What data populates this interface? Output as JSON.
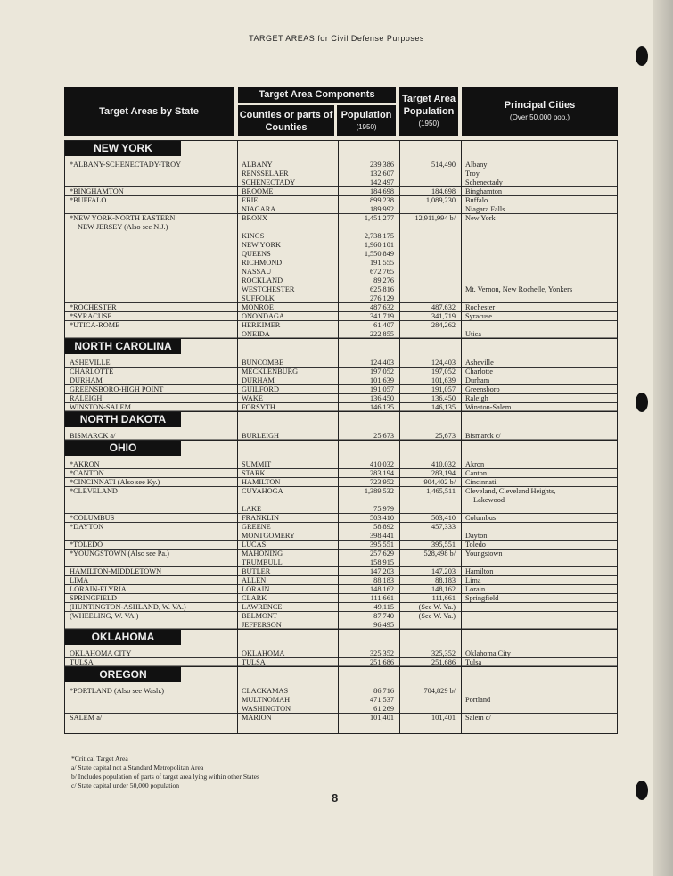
{
  "title": "TARGET AREAS for Civil Defense Purposes",
  "header": {
    "areas": "Target Areas by State",
    "components": "Target Area Components",
    "counties": "Counties or parts of Counties",
    "population": "Population",
    "population_year": "(1950)",
    "target_pop": "Target Area Population",
    "target_year": "(1950)",
    "cities": "Principal Cities",
    "cities_note": "(Over 50,000 pop.)"
  },
  "sections": [
    {
      "state": "NEW YORK",
      "groups": [
        [
          [
            "*ALBANY-SCHENECTADY-TROY",
            "ALBANY",
            "239,386",
            "514,490",
            "Albany"
          ],
          [
            "",
            "RENSSELAER",
            "132,607",
            "",
            "Troy"
          ],
          [
            "",
            "SCHENECTADY",
            "142,497",
            "",
            "Schenectady"
          ]
        ],
        [
          [
            "*BINGHAMTON",
            "BROOME",
            "184,698",
            "184,698",
            "Binghamton"
          ]
        ],
        [
          [
            "*BUFFALO",
            "ERIE",
            "899,238",
            "1,089,230",
            "Buffalo"
          ],
          [
            "",
            "NIAGARA",
            "189,992",
            "",
            "Niagara Falls"
          ]
        ],
        [
          [
            "*NEW YORK-NORTH EASTERN",
            "BRONX",
            "1,451,277",
            "12,911,994 b/",
            "New York"
          ],
          [
            "   NEW JERSEY (Also see N.J.)",
            "",
            "",
            "",
            ""
          ],
          [
            "",
            "KINGS",
            "2,738,175",
            "",
            ""
          ],
          [
            "",
            "NEW YORK",
            "1,960,101",
            "",
            ""
          ],
          [
            "",
            "QUEENS",
            "1,550,849",
            "",
            ""
          ],
          [
            "",
            "RICHMOND",
            "191,555",
            "",
            ""
          ],
          [
            "",
            "NASSAU",
            "672,765",
            "",
            ""
          ],
          [
            "",
            "ROCKLAND",
            "89,276",
            "",
            ""
          ],
          [
            "",
            "WESTCHESTER",
            "625,816",
            "",
            "Mt. Vernon, New Rochelle, Yonkers"
          ],
          [
            "",
            "SUFFOLK",
            "276,129",
            "",
            ""
          ]
        ],
        [
          [
            "*ROCHESTER",
            "MONROE",
            "487,632",
            "487,632",
            "Rochester"
          ]
        ],
        [
          [
            "*SYRACUSE",
            "ONONDAGA",
            "341,719",
            "341,719",
            "Syracuse"
          ]
        ],
        [
          [
            "*UTICA-ROME",
            "HERKIMER",
            "61,407",
            "284,262",
            ""
          ],
          [
            "",
            "ONEIDA",
            "222,855",
            "",
            "Utica"
          ]
        ]
      ]
    },
    {
      "state": "NORTH CAROLINA",
      "groups": [
        [
          [
            "ASHEVILLE",
            "BUNCOMBE",
            "124,403",
            "124,403",
            "Asheville"
          ]
        ],
        [
          [
            "CHARLOTTE",
            "MECKLENBURG",
            "197,052",
            "197,052",
            "Charlotte"
          ]
        ],
        [
          [
            "DURHAM",
            "DURHAM",
            "101,639",
            "101,639",
            "Durham"
          ]
        ],
        [
          [
            "GREENSBORO-HIGH POINT",
            "GUILFORD",
            "191,057",
            "191,057",
            "Greensboro"
          ]
        ],
        [
          [
            "RALEIGH",
            "WAKE",
            "136,450",
            "136,450",
            "Raleigh"
          ]
        ],
        [
          [
            "WINSTON-SALEM",
            "FORSYTH",
            "146,135",
            "146,135",
            "Winston-Salem"
          ]
        ]
      ]
    },
    {
      "state": "NORTH DAKOTA",
      "groups": [
        [
          [
            "BISMARCK a/",
            "BURLEIGH",
            "25,673",
            "25,673",
            "Bismarck c/"
          ]
        ]
      ]
    },
    {
      "state": "OHIO",
      "groups": [
        [
          [
            "*AKRON",
            "SUMMIT",
            "410,032",
            "410,032",
            "Akron"
          ]
        ],
        [
          [
            "*CANTON",
            "STARK",
            "283,194",
            "283,194",
            "Canton"
          ]
        ],
        [
          [
            "*CINCINNATI (Also see Ky.)",
            "HAMILTON",
            "723,952",
            "904,402 b/",
            "Cincinnati"
          ]
        ],
        [
          [
            "*CLEVELAND",
            "CUYAHOGA",
            "1,389,532",
            "1,465,511",
            "Cleveland, Cleveland Heights,"
          ],
          [
            "",
            "",
            "",
            "",
            "   Lakewood"
          ],
          [
            "",
            "LAKE",
            "75,979",
            "",
            ""
          ]
        ],
        [
          [
            "*COLUMBUS",
            "FRANKLIN",
            "503,410",
            "503,410",
            "Columbus"
          ]
        ],
        [
          [
            "*DAYTON",
            "GREENE",
            "58,892",
            "457,333",
            ""
          ],
          [
            "",
            "MONTGOMERY",
            "398,441",
            "",
            "Dayton"
          ]
        ],
        [
          [
            "*TOLEDO",
            "LUCAS",
            "395,551",
            "395,551",
            "Toledo"
          ]
        ],
        [
          [
            "*YOUNGSTOWN (Also see Pa.)",
            "MAHONING",
            "257,629",
            "528,498 b/",
            "Youngstown"
          ],
          [
            "",
            "TRUMBULL",
            "158,915",
            "",
            ""
          ]
        ],
        [
          [
            "HAMILTON-MIDDLETOWN",
            "BUTLER",
            "147,203",
            "147,203",
            "Hamilton"
          ]
        ],
        [
          [
            "LIMA",
            "ALLEN",
            "88,183",
            "88,183",
            "Lima"
          ]
        ],
        [
          [
            "LORAIN-ELYRIA",
            "LORAIN",
            "148,162",
            "148,162",
            "Lorain"
          ]
        ],
        [
          [
            "SPRINGFIELD",
            "CLARK",
            "111,661",
            "111,661",
            "Springfield"
          ]
        ],
        [
          [
            "(HUNTINGTON-ASHLAND, W. VA.)",
            "LAWRENCE",
            "49,115",
            "(See W. Va.)",
            ""
          ]
        ],
        [
          [
            "(WHEELING, W. VA.)",
            "BELMONT",
            "87,740",
            "(See W. Va.)",
            ""
          ],
          [
            "",
            "JEFFERSON",
            "96,495",
            "",
            ""
          ]
        ]
      ]
    },
    {
      "state": "OKLAHOMA",
      "groups": [
        [
          [
            "OKLAHOMA CITY",
            "OKLAHOMA",
            "325,352",
            "325,352",
            "Oklahoma City"
          ]
        ],
        [
          [
            "TULSA",
            "TULSA",
            "251,686",
            "251,686",
            "Tulsa"
          ]
        ]
      ]
    },
    {
      "state": "OREGON",
      "groups": [
        [
          [
            "*PORTLAND (Also see Wash.)",
            "CLACKAMAS",
            "86,716",
            "704,829 b/",
            ""
          ],
          [
            "",
            "MULTNOMAH",
            "471,537",
            "",
            "Portland"
          ],
          [
            "",
            "WASHINGTON",
            "61,269",
            "",
            ""
          ]
        ],
        [
          [
            "SALEM a/",
            "MARION",
            "101,401",
            "101,401",
            "Salem c/"
          ]
        ]
      ]
    }
  ],
  "footnotes": [
    "*Critical Target Area",
    "a/  State capital not a Standard Metropolitan Area",
    "b/  Includes population of parts of target area lying within other States",
    "c/  State capital under 50,000 population"
  ],
  "page_number": "8"
}
